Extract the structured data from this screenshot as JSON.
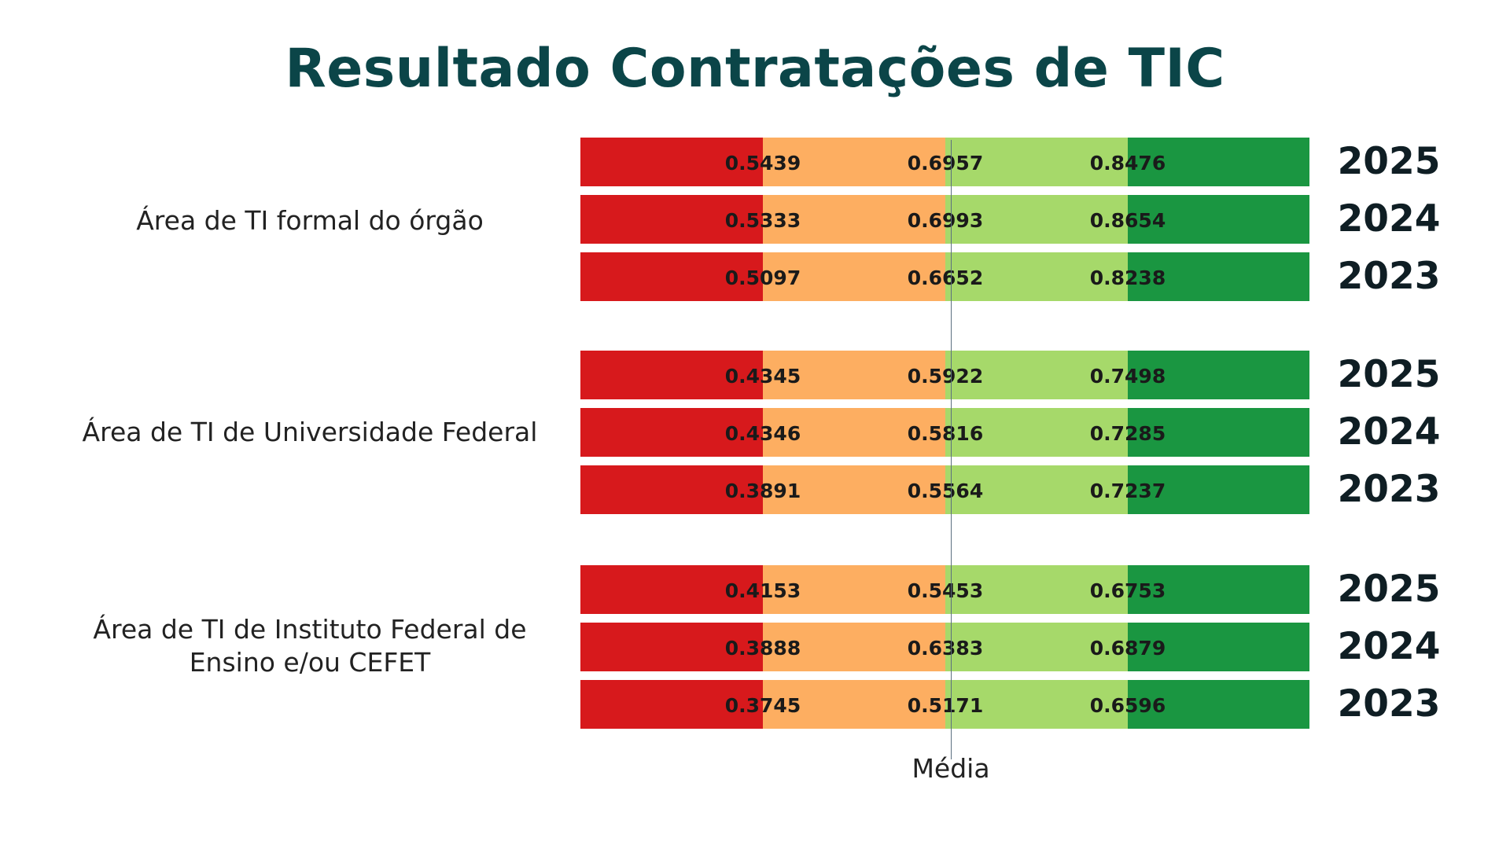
{
  "title": "Resultado Contratações de TIC",
  "chart_data": {
    "type": "bar",
    "title": "Resultado Contratações de TIC",
    "colors": [
      "#d7191c",
      "#fdae61",
      "#a6d96a",
      "#1a9641"
    ],
    "reference_label": "Média",
    "groups": [
      {
        "label": "Área de TI formal do órgão",
        "rows": [
          {
            "year": "2025",
            "values": [
              "0.5439",
              "0.6957",
              "0.8476"
            ]
          },
          {
            "year": "2024",
            "values": [
              "0.5333",
              "0.6993",
              "0.8654"
            ]
          },
          {
            "year": "2023",
            "values": [
              "0.5097",
              "0.6652",
              "0.8238"
            ]
          }
        ]
      },
      {
        "label": "Área de TI de Universidade Federal",
        "rows": [
          {
            "year": "2025",
            "values": [
              "0.4345",
              "0.5922",
              "0.7498"
            ]
          },
          {
            "year": "2024",
            "values": [
              "0.4346",
              "0.5816",
              "0.7285"
            ]
          },
          {
            "year": "2023",
            "values": [
              "0.3891",
              "0.5564",
              "0.7237"
            ]
          }
        ]
      },
      {
        "label": "Área de TI de Instituto Federal de Ensino e/ou CEFET",
        "rows": [
          {
            "year": "2025",
            "values": [
              "0.4153",
              "0.5453",
              "0.6753"
            ]
          },
          {
            "year": "2024",
            "values": [
              "0.3888",
              "0.6383",
              "0.6879"
            ]
          },
          {
            "year": "2023",
            "values": [
              "0.3745",
              "0.5171",
              "0.6596"
            ]
          }
        ]
      }
    ]
  }
}
